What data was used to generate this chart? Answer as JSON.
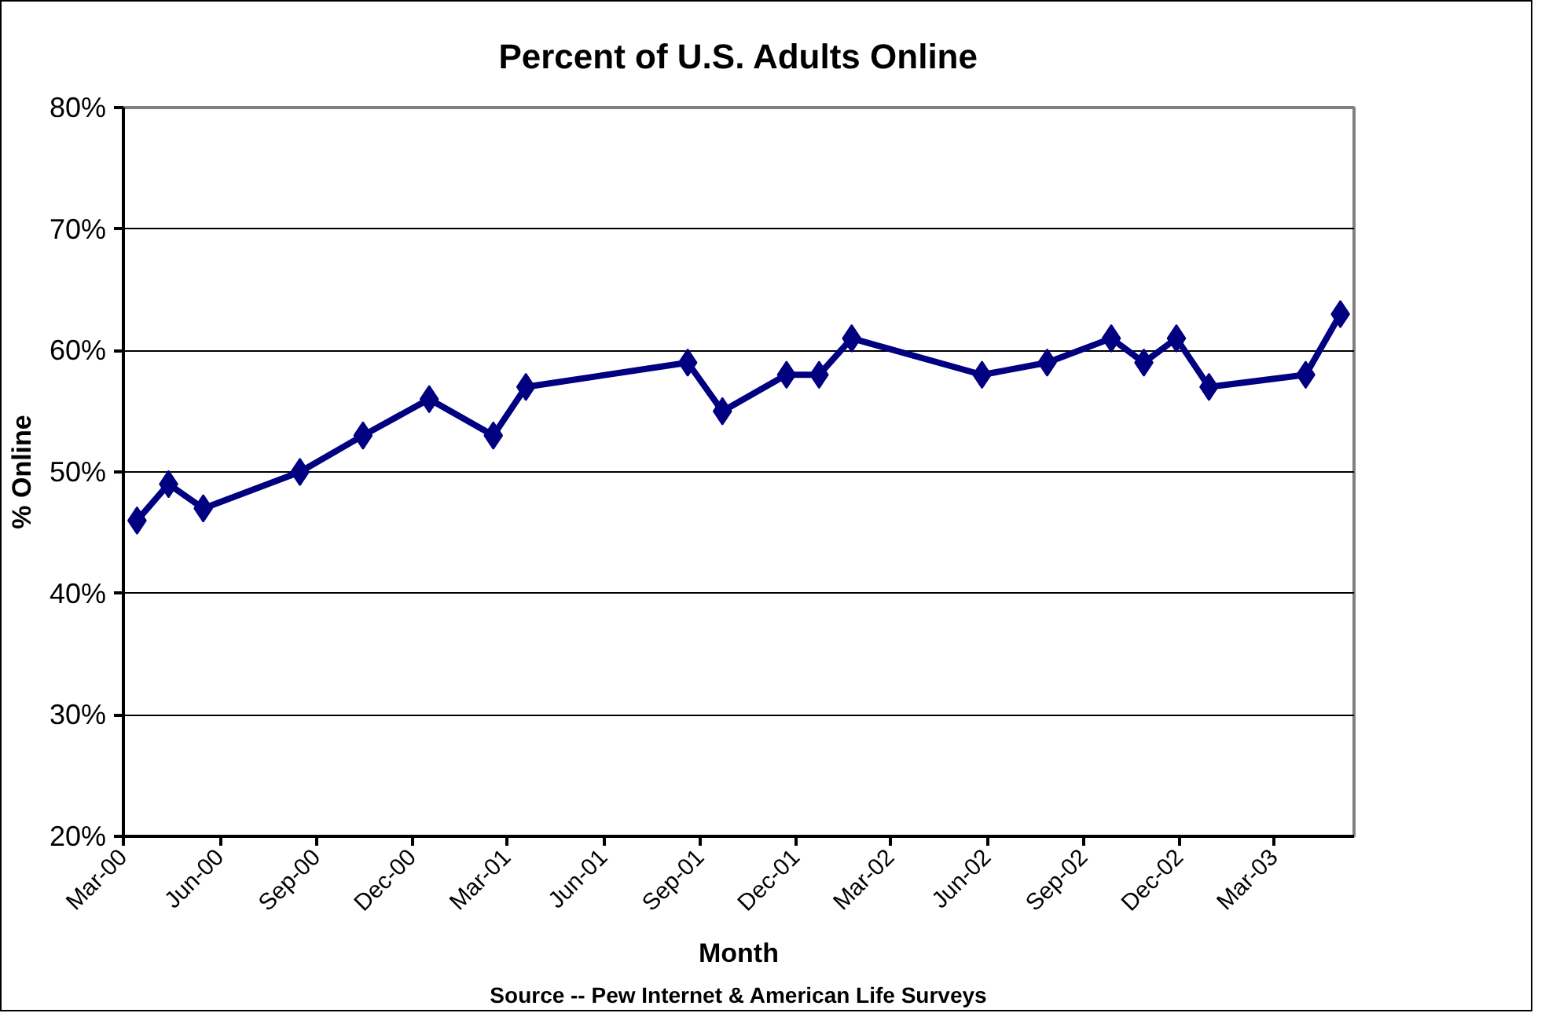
{
  "chart_data": {
    "type": "line",
    "title": "Percent of U.S. Adults Online",
    "xlabel": "Month",
    "ylabel": "% Online",
    "annotations": [
      "Source -- Pew Internet & American Life Surveys"
    ],
    "x": [
      "2000-03-14",
      "2000-04-13",
      "2000-05-16",
      "2000-08-16",
      "2000-10-15",
      "2000-12-17",
      "2001-02-16",
      "2001-03-19",
      "2001-08-20",
      "2001-09-22",
      "2001-11-22",
      "2001-12-23",
      "2002-01-23",
      "2002-05-27",
      "2002-07-28",
      "2002-09-27",
      "2002-10-28",
      "2002-11-28",
      "2002-12-29",
      "2003-03-31",
      "2003-05-03"
    ],
    "series": [
      {
        "color": "#000080",
        "values": [
          46,
          49,
          47,
          50,
          53,
          56,
          53,
          57,
          59,
          55,
          58,
          58,
          61,
          58,
          59,
          61,
          59,
          61,
          57,
          58,
          63
        ]
      }
    ],
    "xlim": [
      "2000-03-01",
      "2003-05-16"
    ],
    "xticks": [
      {
        "value": "2000-03-01",
        "label": "Mar-00"
      },
      {
        "value": "2000-06-01",
        "label": "Jun-00"
      },
      {
        "value": "2000-09-01",
        "label": "Sep-00"
      },
      {
        "value": "2000-12-01",
        "label": "Dec-00"
      },
      {
        "value": "2001-03-01",
        "label": "Mar-01"
      },
      {
        "value": "2001-06-01",
        "label": "Jun-01"
      },
      {
        "value": "2001-09-01",
        "label": "Sep-01"
      },
      {
        "value": "2001-12-01",
        "label": "Dec-01"
      },
      {
        "value": "2002-03-01",
        "label": "Mar-02"
      },
      {
        "value": "2002-06-01",
        "label": "Jun-02"
      },
      {
        "value": "2002-09-01",
        "label": "Sep-02"
      },
      {
        "value": "2002-12-01",
        "label": "Dec-02"
      },
      {
        "value": "2003-03-01",
        "label": "Mar-03"
      }
    ],
    "ylim": [
      20,
      80
    ],
    "yticks": [
      {
        "value": 20,
        "label": "20%"
      },
      {
        "value": 30,
        "label": "30%"
      },
      {
        "value": 40,
        "label": "40%"
      },
      {
        "value": 50,
        "label": "50%"
      },
      {
        "value": 60,
        "label": "60%"
      },
      {
        "value": 70,
        "label": "70%"
      },
      {
        "value": 80,
        "label": "80%"
      }
    ],
    "grid": "y",
    "marker": "diamond",
    "line_style": "solid"
  }
}
